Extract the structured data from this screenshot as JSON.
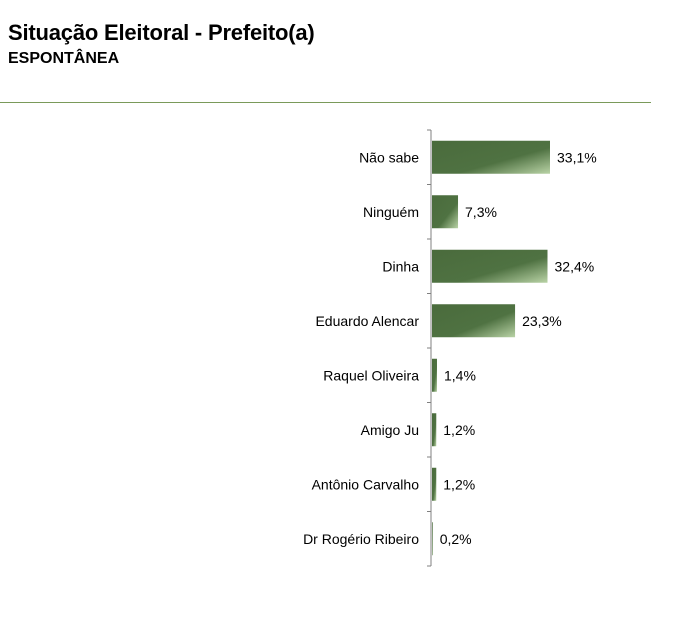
{
  "header": {
    "title": "Situação Eleitoral - Prefeito(a)",
    "subtitle": "ESPONTÂNEA"
  },
  "colors": {
    "bar_dark": "#4a6b3c",
    "bar_light": "#b9d3a6",
    "rule": "#7a9a5a",
    "axis": "#808080"
  },
  "chart_data": {
    "type": "bar",
    "orientation": "horizontal",
    "categories": [
      "Não sabe",
      "Ninguém",
      "Dinha",
      "Eduardo Alencar",
      "Raquel Oliveira",
      "Amigo Ju",
      "Antônio Carvalho",
      "Dr Rogério Ribeiro"
    ],
    "values": [
      33.1,
      7.3,
      32.4,
      23.3,
      1.4,
      1.2,
      1.2,
      0.2
    ],
    "labels": [
      "33,1%",
      "7,3%",
      "32,4%",
      "23,3%",
      "1,4%",
      "1,2%",
      "1,2%",
      "0,2%"
    ],
    "xlim": [
      0,
      33.1
    ],
    "grid": false,
    "legend": "none"
  }
}
